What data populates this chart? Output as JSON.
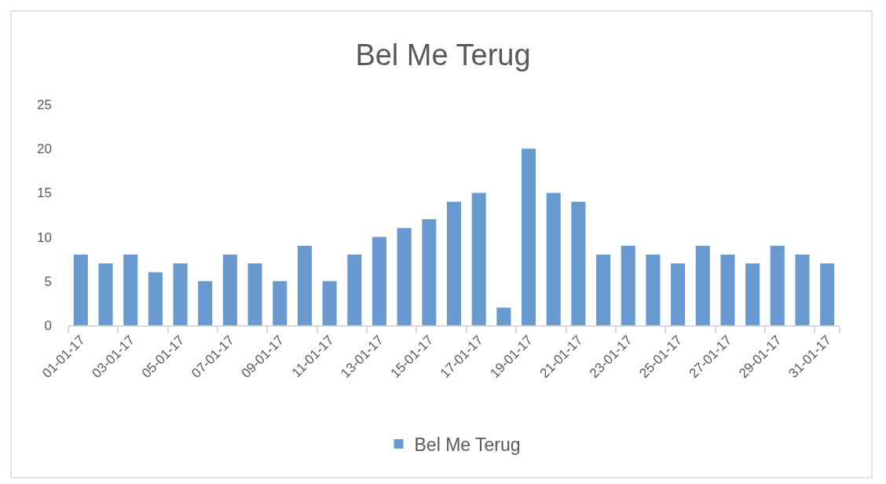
{
  "chart_data": {
    "type": "bar",
    "title": "Bel Me Terug",
    "categories": [
      "01-01-17",
      null,
      "03-01-17",
      null,
      "05-01-17",
      null,
      "07-01-17",
      null,
      "09-01-17",
      null,
      "11-01-17",
      null,
      "13-01-17",
      null,
      "15-01-17",
      null,
      "17-01-17",
      null,
      "19-01-17",
      null,
      "21-01-17",
      null,
      "23-01-17",
      null,
      "25-01-17",
      null,
      "27-01-17",
      null,
      "29-01-17",
      null,
      "31-01-17"
    ],
    "series": [
      {
        "name": "Bel Me Terug",
        "color": "#689ad0",
        "values": [
          8,
          7,
          8,
          6,
          7,
          5,
          8,
          7,
          5,
          9,
          5,
          8,
          10,
          11,
          12,
          14,
          15,
          2,
          20,
          15,
          14,
          8,
          9,
          8,
          7,
          9,
          8,
          7,
          9,
          8,
          7
        ]
      }
    ],
    "ylim": [
      0,
      25
    ],
    "yticks": [
      0,
      5,
      10,
      15,
      20,
      25
    ],
    "grid": false,
    "legend": "bottom"
  }
}
